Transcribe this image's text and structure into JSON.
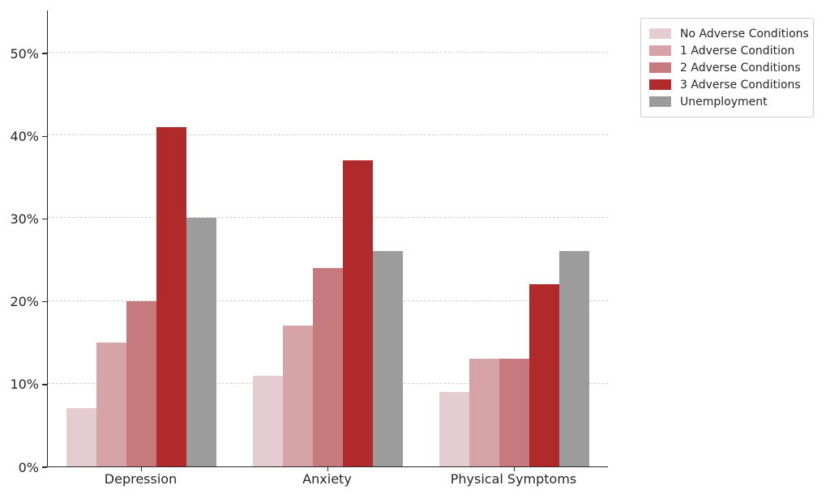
{
  "chart_data": {
    "type": "bar",
    "title": "",
    "xlabel": "",
    "ylabel": "",
    "categories": [
      "Depression",
      "Anxiety",
      "Physical Symptoms"
    ],
    "series": [
      {
        "name": "No Adverse Conditions",
        "color": "#e5ccd0",
        "values": [
          7,
          11,
          9
        ]
      },
      {
        "name": "1 Adverse Condition",
        "color": "#d6a3a6",
        "values": [
          15,
          17,
          13
        ]
      },
      {
        "name": "2 Adverse Conditions",
        "color": "#c67a7d",
        "values": [
          20,
          24,
          13
        ]
      },
      {
        "name": "3 Adverse Conditions",
        "color": "#b02a2c",
        "values": [
          41,
          37,
          22
        ]
      },
      {
        "name": "Unemployment",
        "color": "#9c9c9c",
        "values": [
          30,
          26,
          26
        ]
      }
    ],
    "ytick_labels": [
      "0%",
      "10%",
      "20%",
      "30%",
      "40%",
      "50%"
    ],
    "ytick_values": [
      0,
      10,
      20,
      30,
      40,
      50
    ],
    "ylim": [
      0,
      55.2
    ],
    "grid": "horizontal-dashed",
    "legend_position": "upper-right-outside"
  }
}
